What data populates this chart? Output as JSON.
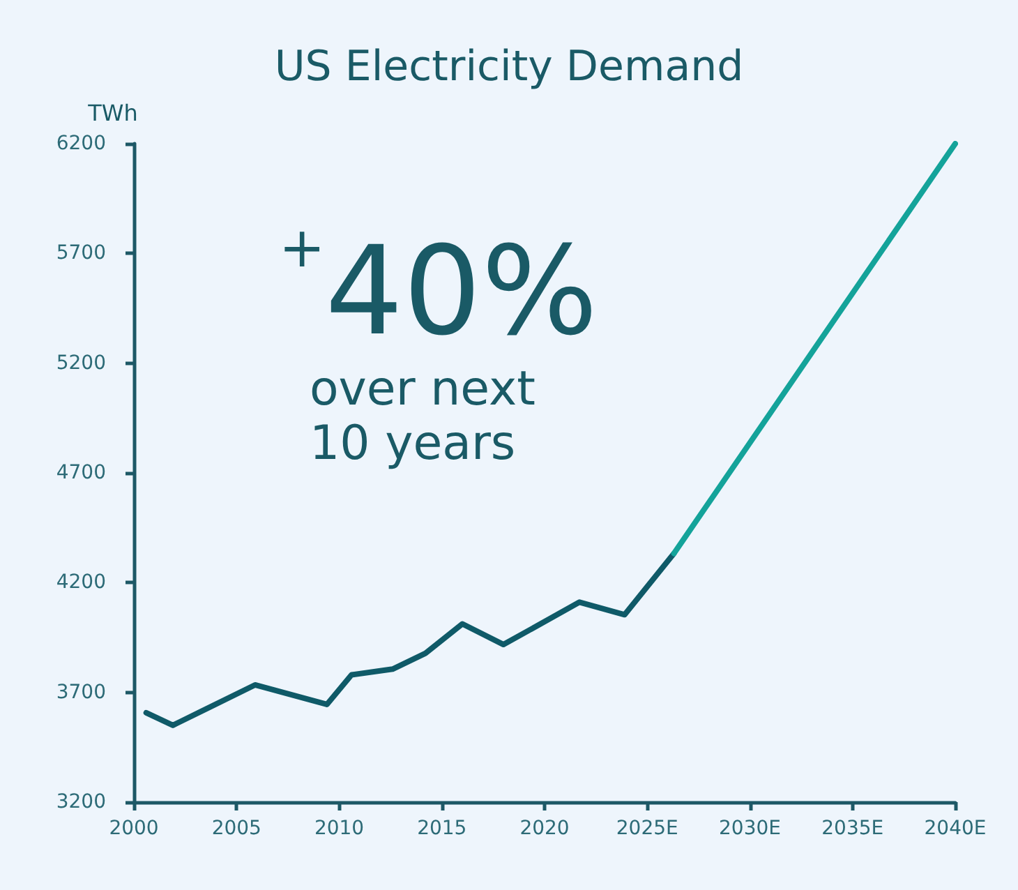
{
  "chart_data": {
    "type": "line",
    "title": "US Electricity Demand",
    "ylabel": "TWh",
    "annotations": [
      "$^{+}$40%",
      "over next\n10 years"
    ],
    "series": [
      {
        "color": "#0f5a68",
        "x": [
          2000.6,
          2001.9,
          2005.9,
          2009.4,
          2010.6,
          2012.6,
          2014.2,
          2016.0,
          2018.0,
          2021.7,
          2023.9,
          2026.3
        ],
        "values": [
          3607,
          3550,
          3734,
          3645,
          3780,
          3806,
          3878,
          4012,
          3918,
          4111,
          4054,
          4333
        ]
      },
      {
        "color": "#14a39a",
        "x": [
          2026.3,
          2040
        ],
        "values": [
          4333,
          6200
        ]
      }
    ],
    "xlim": [
      2000,
      2040
    ],
    "xticks": [
      2000,
      2005,
      2010,
      2015,
      2020,
      {
        "value": 2025,
        "label": "2025E"
      },
      {
        "value": 2030,
        "label": "2030E"
      },
      {
        "value": 2035,
        "label": "2035E"
      },
      {
        "value": 2040,
        "label": "2040E"
      }
    ],
    "ylim": [
      3200,
      6200
    ],
    "yticks": [
      3200,
      3700,
      4200,
      4700,
      5200,
      5700,
      6200
    ],
    "marker": "none",
    "line_style": "solid"
  }
}
